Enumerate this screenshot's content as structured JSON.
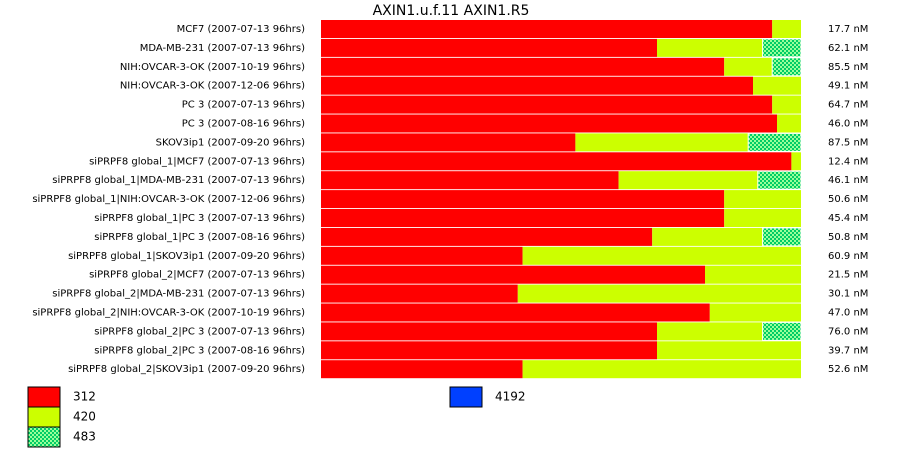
{
  "chart_data": {
    "type": "stacked-bar-horizontal",
    "title": "AXIN1.u.f.11  AXIN1.R5",
    "categories": [
      "MCF7 (2007-07-13 96hrs)",
      "MDA-MB-231 (2007-07-13 96hrs)",
      "NIH:OVCAR-3-OK (2007-10-19 96hrs)",
      "NIH:OVCAR-3-OK (2007-12-06 96hrs)",
      "PC 3 (2007-07-13 96hrs)",
      "PC 3 (2007-08-16 96hrs)",
      "SKOV3ip1 (2007-09-20 96hrs)",
      "siPRPF8 global_1|MCF7 (2007-07-13 96hrs)",
      "siPRPF8 global_1|MDA-MB-231 (2007-07-13 96hrs)",
      "siPRPF8 global_1|NIH:OVCAR-3-OK (2007-12-06 96hrs)",
      "siPRPF8 global_1|PC 3 (2007-07-13 96hrs)",
      "siPRPF8 global_1|PC 3 (2007-08-16 96hrs)",
      "siPRPF8 global_1|SKOV3ip1 (2007-09-20 96hrs)",
      "siPRPF8 global_2|MCF7 (2007-07-13 96hrs)",
      "siPRPF8 global_2|MDA-MB-231 (2007-07-13 96hrs)",
      "siPRPF8 global_2|NIH:OVCAR-3-OK (2007-10-19 96hrs)",
      "siPRPF8 global_2|PC 3 (2007-07-13 96hrs)",
      "siPRPF8 global_2|PC 3 (2007-08-16 96hrs)",
      "siPRPF8 global_2|SKOV3ip1 (2007-09-20 96hrs)"
    ],
    "concentrations": [
      "17.7 nM",
      "62.1 nM",
      "85.5 nM",
      "49.1 nM",
      "64.7 nM",
      "46.0 nM",
      "87.5 nM",
      "12.4 nM",
      "46.1 nM",
      "50.6 nM",
      "45.4 nM",
      "50.8 nM",
      "60.9 nM",
      "21.5 nM",
      "30.1 nM",
      "47.0 nM",
      "76.0 nM",
      "39.7 nM",
      "52.6 nM"
    ],
    "xlim": [
      0,
      100
    ],
    "series": [
      {
        "name": "312",
        "color": "#ff0000",
        "values": [
          94,
          70,
          84,
          90,
          94,
          95,
          53,
          98,
          62,
          84,
          84,
          69,
          42,
          80,
          41,
          81,
          70,
          70,
          42
        ]
      },
      {
        "name": "420",
        "color": "#ccff00",
        "values": [
          6,
          22,
          10,
          10,
          6,
          5,
          36,
          2,
          29,
          16,
          16,
          23,
          58,
          20,
          59,
          19,
          22,
          30,
          58
        ]
      },
      {
        "name": "483",
        "color": "#00cc66",
        "pattern": "checker",
        "values": [
          0,
          8,
          6,
          0,
          0,
          0,
          11,
          0,
          9,
          0,
          0,
          8,
          0,
          0,
          0,
          0,
          8,
          0,
          0
        ]
      },
      {
        "name": "4192",
        "color": "#0040ff",
        "values": [
          0,
          0,
          0,
          0,
          0,
          0,
          0,
          0,
          0,
          0,
          0,
          0,
          0,
          0,
          0,
          0,
          0,
          0,
          0
        ]
      }
    ]
  }
}
